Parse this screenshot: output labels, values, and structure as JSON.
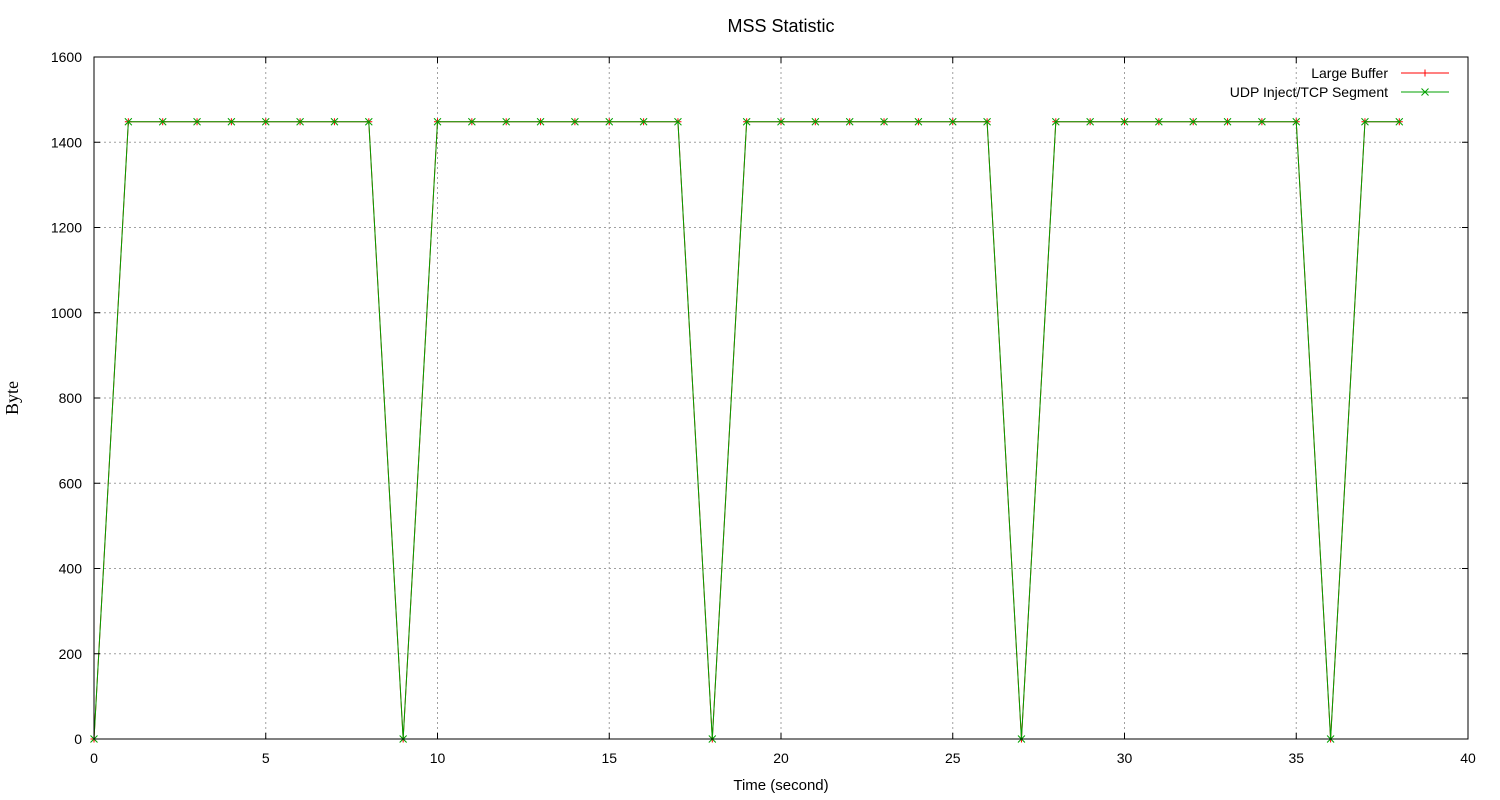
{
  "chart_data": {
    "type": "line",
    "title": "MSS Statistic",
    "xlabel": "Time (second)",
    "ylabel": "Byte",
    "xlim": [
      0,
      40
    ],
    "ylim": [
      0,
      1600
    ],
    "x_ticks": [
      0,
      5,
      10,
      15,
      20,
      25,
      30,
      35,
      40
    ],
    "y_ticks": [
      0,
      200,
      400,
      600,
      800,
      1000,
      1200,
      1400,
      1600
    ],
    "grid": true,
    "legend_position": "top-right",
    "x": [
      0,
      1,
      2,
      3,
      4,
      5,
      6,
      7,
      8,
      9,
      10,
      11,
      12,
      13,
      14,
      15,
      16,
      17,
      18,
      19,
      20,
      21,
      22,
      23,
      24,
      25,
      26,
      27,
      28,
      29,
      30,
      31,
      32,
      33,
      34,
      35,
      36,
      37,
      38
    ],
    "series": [
      {
        "name": "Large Buffer",
        "color": "#ff0000",
        "marker": "plus",
        "values": [
          0,
          1448,
          1448,
          1448,
          1448,
          1448,
          1448,
          1448,
          1448,
          0,
          1448,
          1448,
          1448,
          1448,
          1448,
          1448,
          1448,
          1448,
          0,
          1448,
          1448,
          1448,
          1448,
          1448,
          1448,
          1448,
          1448,
          0,
          1448,
          1448,
          1448,
          1448,
          1448,
          1448,
          1448,
          1448,
          0,
          1448,
          1448
        ]
      },
      {
        "name": "UDP Inject/TCP Segment",
        "color": "#00a000",
        "marker": "cross",
        "values": [
          0,
          1448,
          1448,
          1448,
          1448,
          1448,
          1448,
          1448,
          1448,
          0,
          1448,
          1448,
          1448,
          1448,
          1448,
          1448,
          1448,
          1448,
          0,
          1448,
          1448,
          1448,
          1448,
          1448,
          1448,
          1448,
          1448,
          0,
          1448,
          1448,
          1448,
          1448,
          1448,
          1448,
          1448,
          1448,
          0,
          1448,
          1448
        ]
      }
    ]
  }
}
